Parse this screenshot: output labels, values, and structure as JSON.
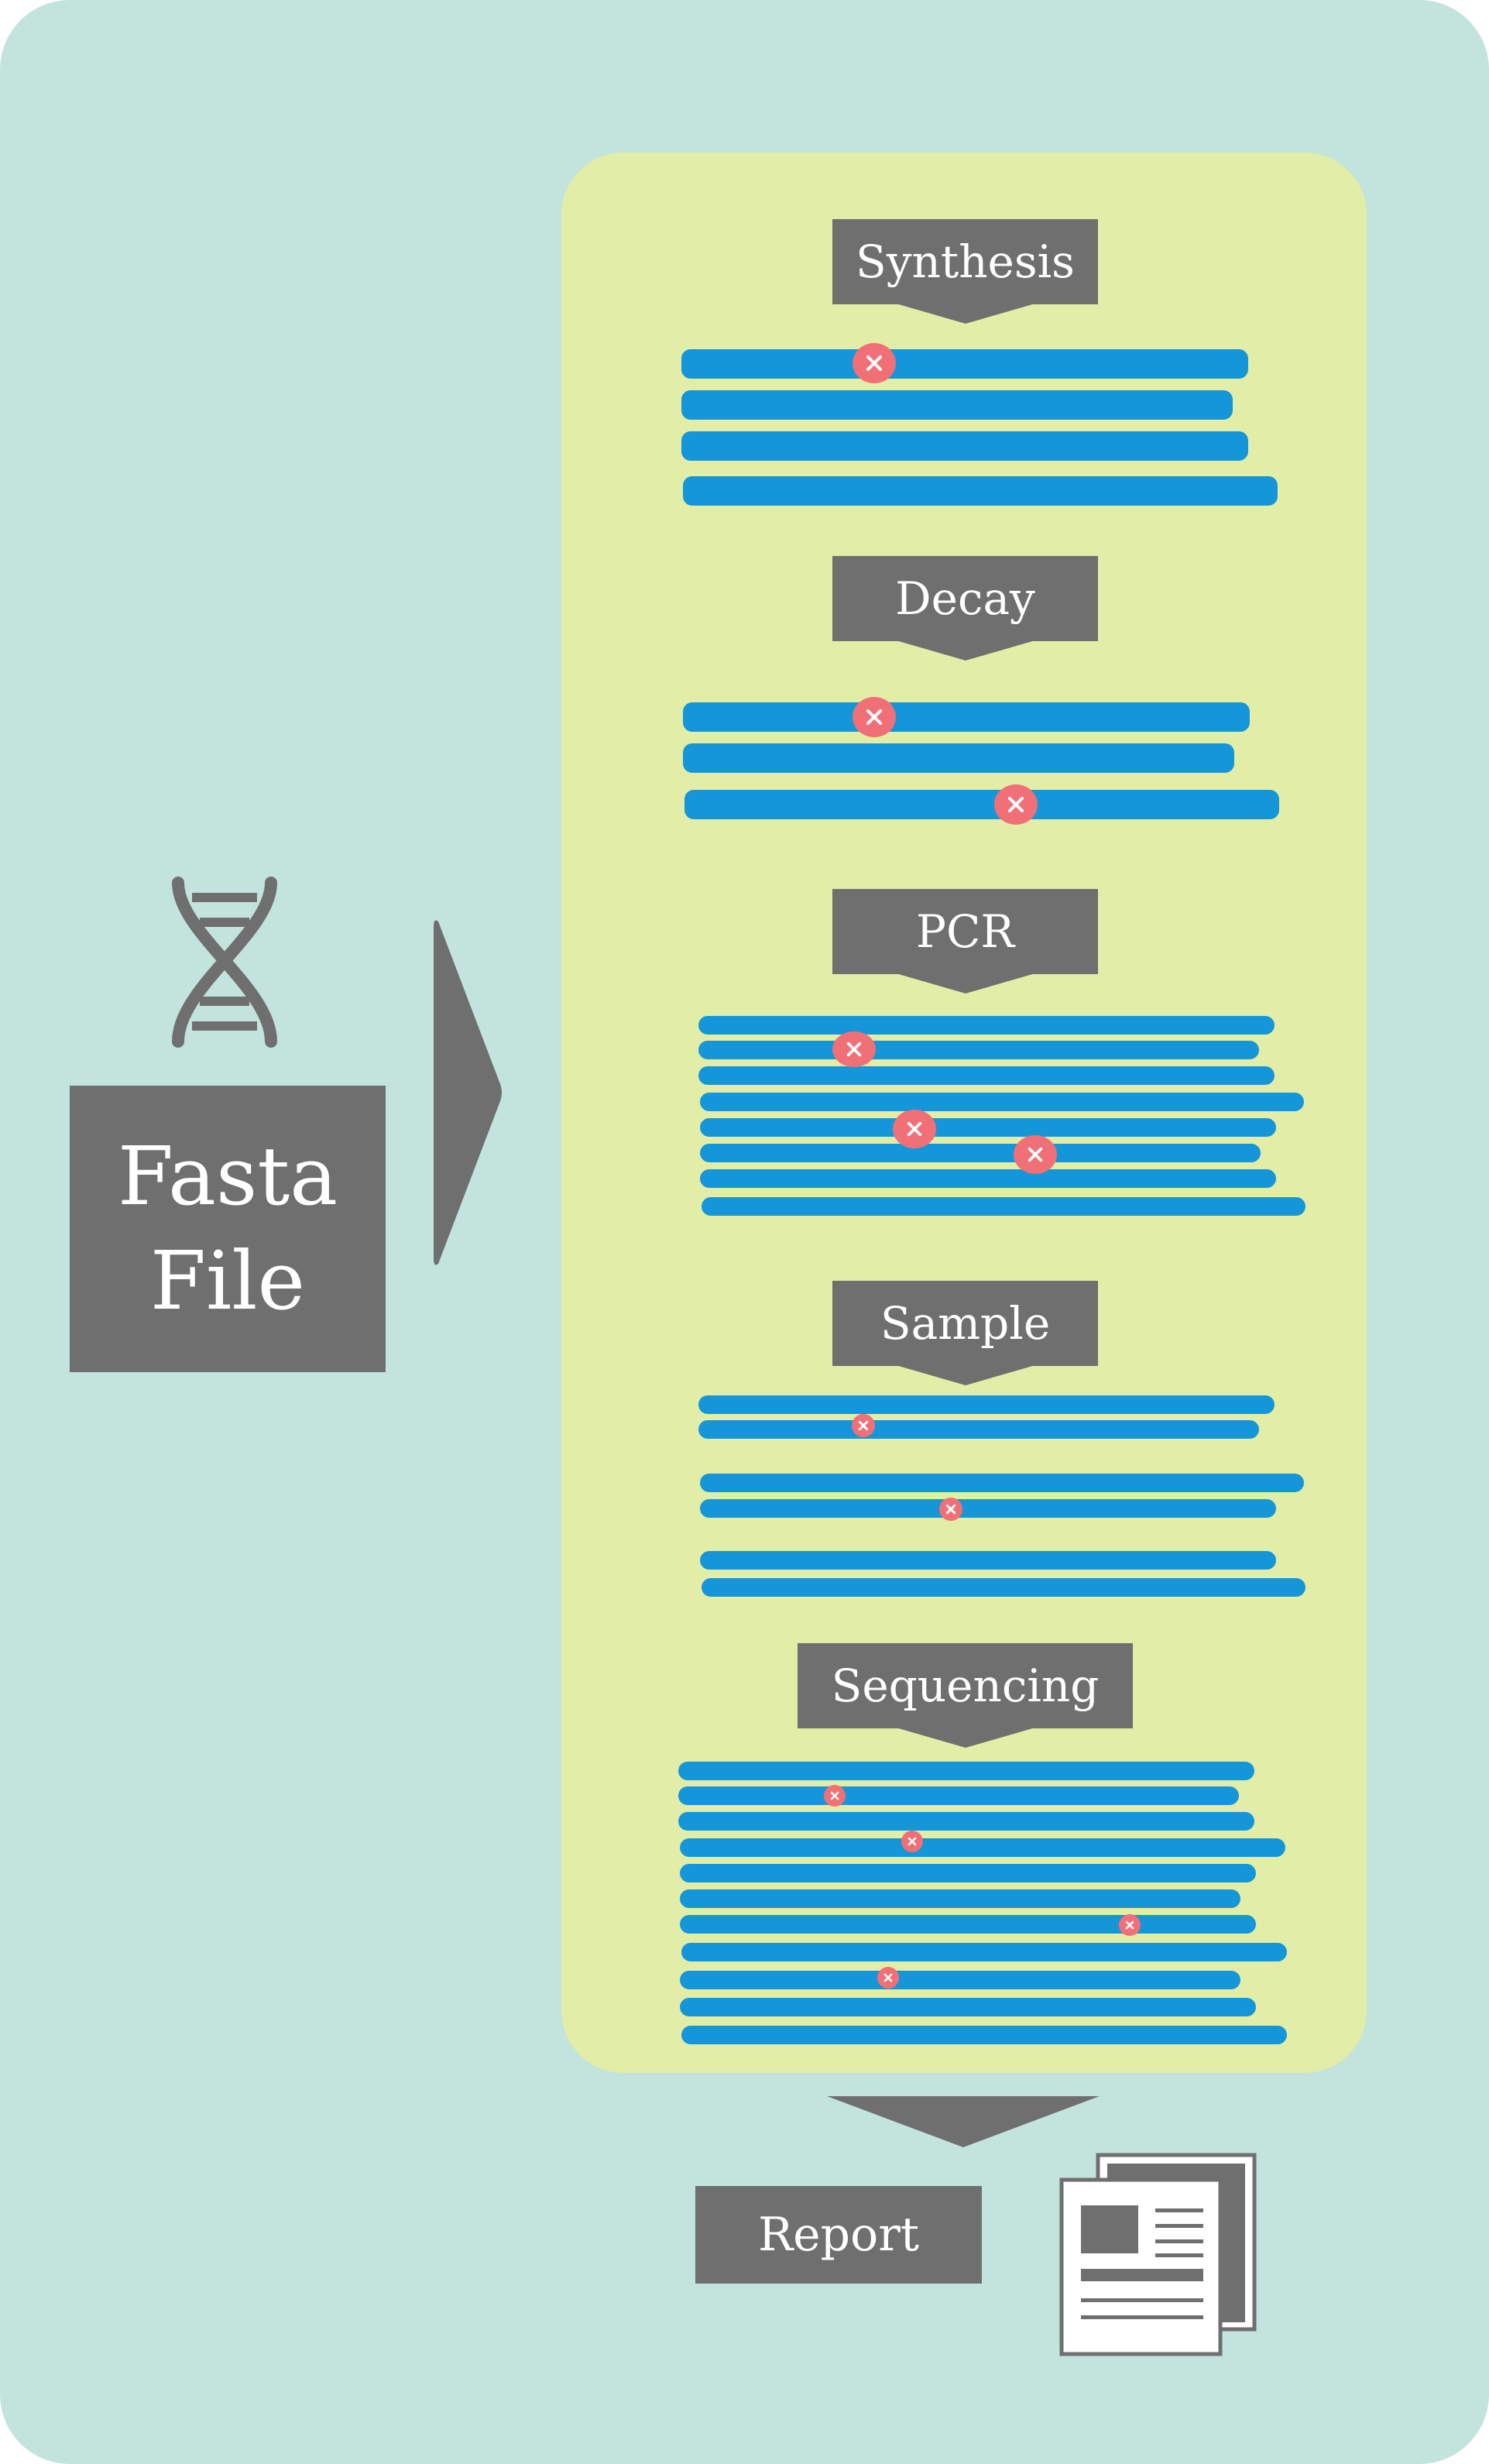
{
  "input": {
    "line1": "Fasta",
    "line2": "File",
    "icon": "dna-icon"
  },
  "stages": [
    {
      "label": "Synthesis",
      "strands": 4,
      "errors": 1
    },
    {
      "label": "Decay",
      "strands": 3,
      "errors": 2
    },
    {
      "label": "PCR",
      "strands": 8,
      "errors": 3
    },
    {
      "label": "Sample",
      "strands": 6,
      "errors": 2
    },
    {
      "label": "Sequencing",
      "strands": 11,
      "errors": 4
    }
  ],
  "output": {
    "label": "Report",
    "icon": "document-icon"
  },
  "colors": {
    "background": "#c3e3dd",
    "panel": "#e2eda7",
    "label_box": "#6f6f6f",
    "strand": "#1596d9",
    "error": "#f17077"
  }
}
